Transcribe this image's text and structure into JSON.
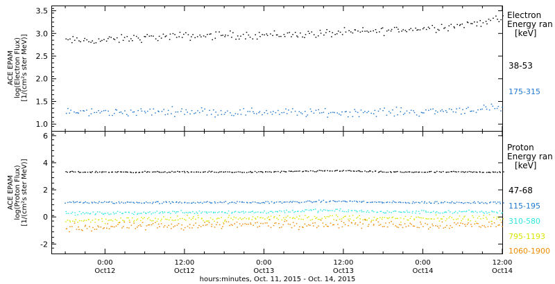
{
  "colors": {
    "black": "#000000",
    "blue": "#1f77d0",
    "cyan": "#2ee6e0",
    "yellow": "#d8e600",
    "orange": "#f08a00",
    "frame": "#000000",
    "background": "#ffffff"
  },
  "x_axis": {
    "caption": "hours:minutes, Oct. 11, 2015 - Oct. 14, 2015",
    "ticks": [
      {
        "time": "0:00",
        "date": "Oct12"
      },
      {
        "time": "12:00",
        "date": "Oct12"
      },
      {
        "time": "0:00",
        "date": "Oct13"
      },
      {
        "time": "12:00",
        "date": "Oct13"
      },
      {
        "time": "0:00",
        "date": "Oct14"
      },
      {
        "time": "12:00",
        "date": "Oct14"
      }
    ]
  },
  "panels": {
    "electron": {
      "ylabel_1": "ACE EPAM",
      "ylabel_2": "log(Electron Flux)",
      "ylabel_3": "[1/(cm²s ster MeV)]",
      "legend_title_1": "Electron",
      "legend_title_2": "Energy ran",
      "legend_unit": "[keV]",
      "yticks": [
        "3.5",
        "3.0",
        "2.5",
        "2.0",
        "1.5",
        "1.0"
      ]
    },
    "proton": {
      "ylabel_1": "ACE EPAM",
      "ylabel_2": "log(Proton Flux)",
      "ylabel_3": "[1/(cm²s ster MeV)]",
      "legend_title_1": "Proton",
      "legend_title_2": "Energy ran",
      "legend_unit": "[keV]",
      "yticks": [
        "6",
        "4",
        "2",
        "0",
        "-2"
      ]
    }
  },
  "chart_data": [
    {
      "type": "scatter",
      "x_unit": "hours since Oct 11 2015 00:00 UT",
      "xlim": [
        16,
        84
      ],
      "ylim": [
        0.85,
        3.6
      ],
      "series": [
        {
          "name": "38-53",
          "color": "black",
          "x": [
            18,
            24,
            30,
            36,
            42,
            48,
            54,
            60,
            66,
            72,
            78,
            84
          ],
          "y": [
            2.85,
            2.86,
            2.92,
            2.95,
            2.97,
            2.98,
            2.99,
            3.03,
            3.07,
            3.12,
            3.2,
            3.33
          ]
        },
        {
          "name": "175-315",
          "color": "blue",
          "x": [
            18,
            24,
            30,
            36,
            42,
            48,
            54,
            60,
            66,
            72,
            78,
            84
          ],
          "y": [
            1.28,
            1.27,
            1.28,
            1.3,
            1.27,
            1.28,
            1.26,
            1.27,
            1.28,
            1.28,
            1.33,
            1.35
          ]
        }
      ]
    },
    {
      "type": "scatter",
      "x_unit": "hours since Oct 11 2015 00:00 UT",
      "xlim": [
        16,
        84
      ],
      "ylim": [
        -2.7,
        6.3
      ],
      "series": [
        {
          "name": "47-68",
          "color": "black",
          "x": [
            18,
            24,
            30,
            36,
            42,
            48,
            54,
            60,
            66,
            72,
            78,
            84
          ],
          "y": [
            3.35,
            3.35,
            3.35,
            3.35,
            3.35,
            3.35,
            3.4,
            3.45,
            3.35,
            3.35,
            3.35,
            3.35
          ]
        },
        {
          "name": "115-195",
          "color": "blue",
          "x": [
            18,
            24,
            30,
            36,
            42,
            48,
            54,
            60,
            66,
            72,
            78,
            84
          ],
          "y": [
            1.1,
            1.1,
            1.1,
            1.1,
            1.1,
            1.1,
            1.15,
            1.2,
            1.1,
            1.1,
            1.1,
            1.1
          ]
        },
        {
          "name": "310-580",
          "color": "cyan",
          "x": [
            18,
            24,
            30,
            36,
            42,
            48,
            54,
            60,
            66,
            72,
            78,
            84
          ],
          "y": [
            0.3,
            0.3,
            0.35,
            0.4,
            0.4,
            0.4,
            0.5,
            0.5,
            0.4,
            0.4,
            0.4,
            0.4
          ]
        },
        {
          "name": "795-1193",
          "color": "yellow",
          "x": [
            18,
            24,
            30,
            36,
            42,
            48,
            54,
            60,
            66,
            72,
            78,
            84
          ],
          "y": [
            -0.25,
            -0.2,
            -0.15,
            -0.1,
            -0.1,
            -0.05,
            0.0,
            0.0,
            -0.1,
            -0.1,
            -0.05,
            -0.05
          ]
        },
        {
          "name": "1060-1900",
          "color": "orange",
          "x": [
            18,
            24,
            30,
            36,
            42,
            48,
            54,
            60,
            66,
            72,
            78,
            84
          ],
          "y": [
            -0.8,
            -0.7,
            -0.65,
            -0.6,
            -0.55,
            -0.5,
            -0.5,
            -0.45,
            -0.5,
            -0.55,
            -0.55,
            -0.55
          ]
        }
      ]
    }
  ]
}
